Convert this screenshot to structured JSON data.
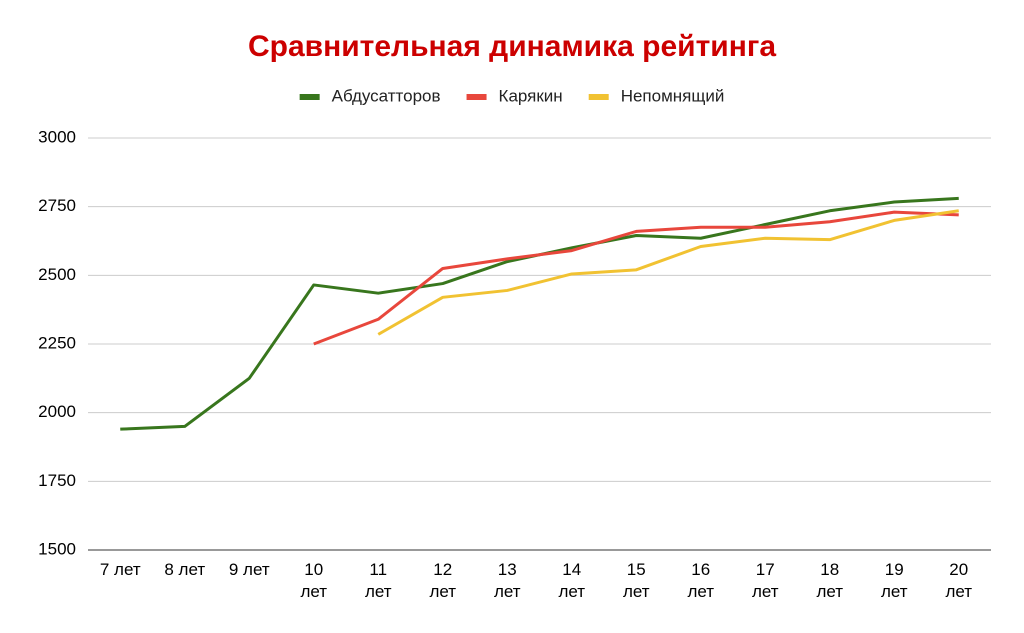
{
  "chart_data": {
    "type": "line",
    "title": "Сравнительная динамика рейтинга",
    "categories": [
      "7 лет",
      "8 лет",
      "9 лет",
      "10\nлет",
      "11\nлет",
      "12\nлет",
      "13\nлет",
      "14\nлет",
      "15\nлет",
      "16\nлет",
      "17\nлет",
      "18\nлет",
      "19\nлет",
      "20\nлет"
    ],
    "series": [
      {
        "name": "Абдусатторов",
        "color": "#38761d",
        "values": [
          1940,
          1950,
          2125,
          2465,
          2435,
          2470,
          2550,
          2600,
          2645,
          2635,
          2685,
          2735,
          2767,
          2780
        ]
      },
      {
        "name": "Карякин",
        "color": "#e8473c",
        "values": [
          null,
          null,
          null,
          2250,
          2340,
          2525,
          2560,
          2590,
          2660,
          2675,
          2675,
          2695,
          2730,
          2720
        ]
      },
      {
        "name": "Непомнящий",
        "color": "#f1c232",
        "values": [
          null,
          null,
          null,
          null,
          2285,
          2420,
          2445,
          2505,
          2520,
          2605,
          2635,
          2630,
          2700,
          2735
        ]
      }
    ],
    "ylim": [
      1500,
      3000
    ],
    "yticks": [
      1500,
      1750,
      2000,
      2250,
      2500,
      2750,
      3000
    ],
    "grid": true,
    "legend": "top"
  }
}
